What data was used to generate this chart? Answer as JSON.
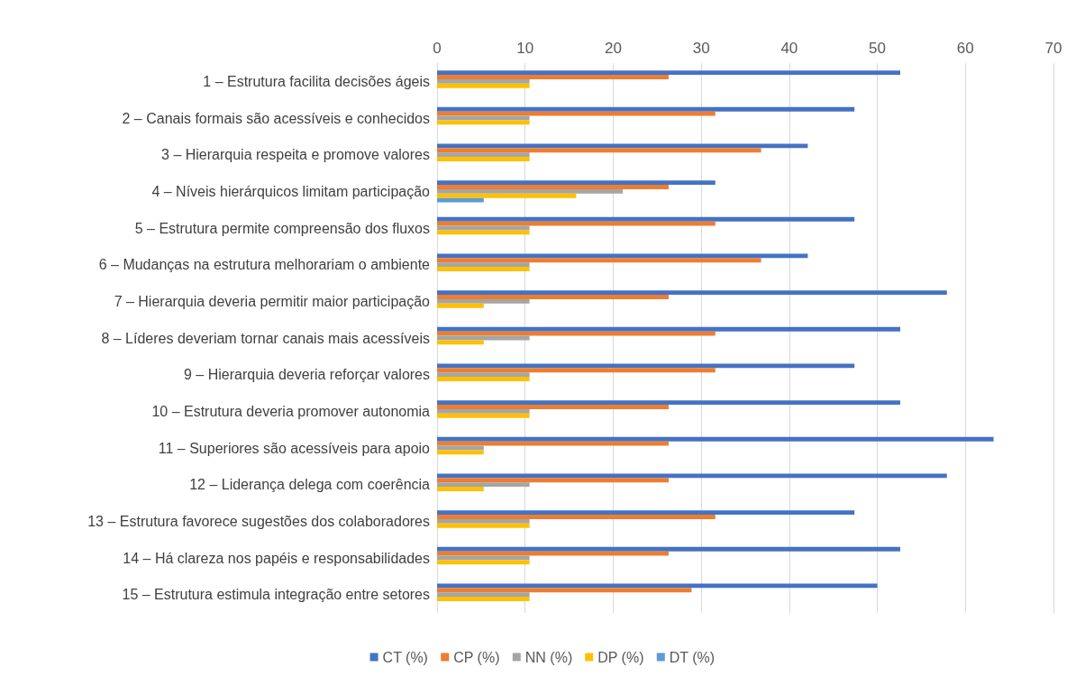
{
  "chart_data": {
    "type": "bar",
    "orientation": "horizontal",
    "categories": [
      "1 – Estrutura facilita decisões ágeis",
      "2 – Canais formais são acessíveis e conhecidos",
      "3 – Hierarquia respeita e promove valores",
      "4 – Níveis hierárquicos limitam participação",
      "5 – Estrutura permite compreensão dos fluxos",
      "6 – Mudanças na estrutura melhorariam o ambiente",
      "7 – Hierarquia deveria permitir maior participação",
      "8 – Líderes deveriam tornar canais mais acessíveis",
      "9 – Hierarquia deveria reforçar valores",
      "10 – Estrutura deveria promover autonomia",
      "11 – Superiores são acessíveis para apoio",
      "12 – Liderança delega com coerência",
      "13 – Estrutura favorece sugestões dos colaboradores",
      "14 – Há clareza nos papéis e responsabilidades",
      "15 – Estrutura estimula integração entre setores"
    ],
    "series": [
      {
        "name": "CT (%)",
        "color": "#4472c4",
        "values": [
          52.6,
          47.4,
          42.1,
          31.6,
          47.4,
          42.1,
          57.9,
          52.6,
          47.4,
          52.6,
          63.2,
          57.9,
          47.4,
          52.6,
          50
        ]
      },
      {
        "name": "CP (%)",
        "color": "#ed7d31",
        "values": [
          26.3,
          31.6,
          36.8,
          26.3,
          31.6,
          36.8,
          26.3,
          31.6,
          31.6,
          26.3,
          26.3,
          26.3,
          31.6,
          26.3,
          28.9
        ]
      },
      {
        "name": "NN (%)",
        "color": "#a5a5a5",
        "values": [
          10.5,
          10.5,
          10.5,
          21.1,
          10.5,
          10.5,
          10.5,
          10.5,
          10.5,
          10.5,
          5.3,
          10.5,
          10.5,
          10.5,
          10.5
        ]
      },
      {
        "name": "DP (%)",
        "color": "#ffc000",
        "values": [
          10.5,
          10.5,
          10.5,
          15.8,
          10.5,
          10.5,
          5.3,
          5.3,
          10.5,
          10.5,
          5.3,
          5.3,
          10.5,
          10.5,
          10.5
        ]
      },
      {
        "name": "DT (%)",
        "color": "#5b9bd5",
        "values": [
          null,
          null,
          null,
          5.3,
          null,
          null,
          null,
          null,
          null,
          null,
          null,
          null,
          null,
          null,
          null
        ]
      }
    ],
    "xlim": [
      0,
      70
    ],
    "xticks": [
      0,
      10,
      20,
      30,
      40,
      50,
      60,
      70
    ],
    "grid": "x",
    "legend": "bottom"
  }
}
